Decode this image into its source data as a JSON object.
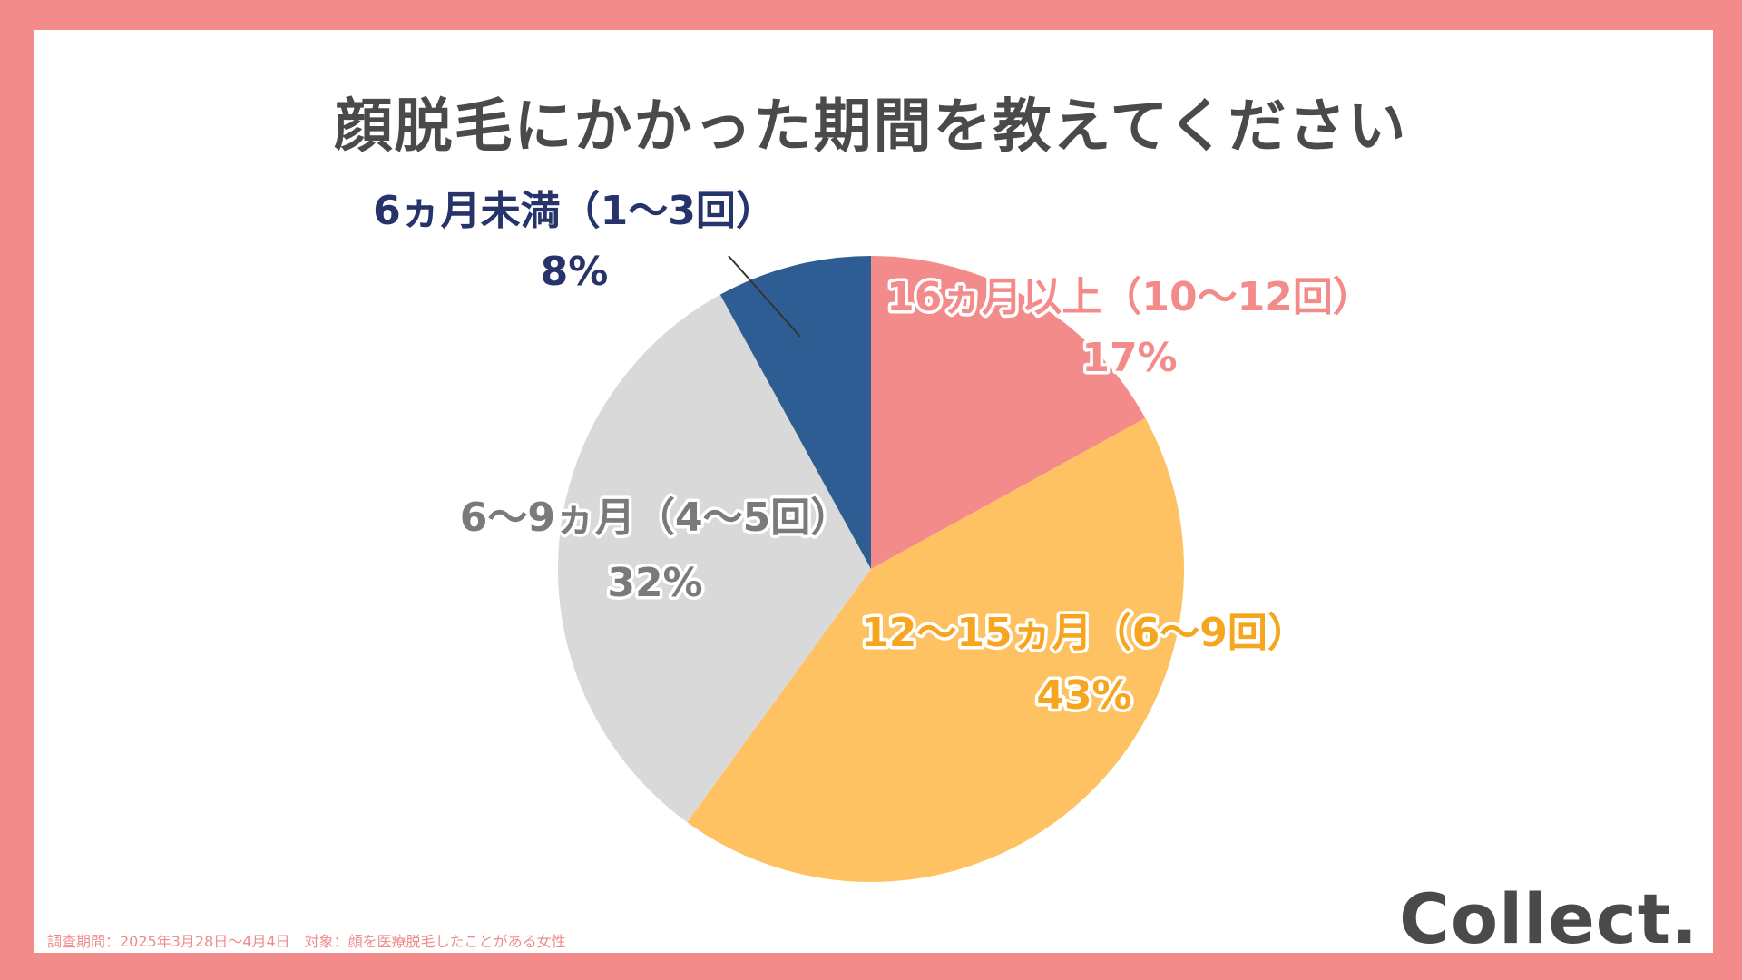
{
  "chart_data": {
    "type": "pie",
    "title": "顔脱毛にかかった期間を教えてください",
    "start_angle_deg": 0,
    "direction": "clockwise",
    "slices": [
      {
        "label": "16ヵ月以上（10〜12回）",
        "value": 17,
        "value_label": "17%",
        "color": "#f48b8b",
        "label_color": "#f48b8b"
      },
      {
        "label": "12〜15ヵ月（6〜9回）",
        "value": 43,
        "value_label": "43%",
        "color": "#fec263",
        "label_color": "#f5a51e"
      },
      {
        "label": "6〜9ヵ月（4〜5回）",
        "value": 32,
        "value_label": "32%",
        "color": "#d9d9d9",
        "label_color": "#7a7a7a"
      },
      {
        "label": "6ヵ月未満（1〜3回）",
        "value": 8,
        "value_label": "8%",
        "color": "#2e5d94",
        "label_color": "#27346b"
      }
    ]
  },
  "footnote": "調査期間：2025年3月28日〜4月4日　対象：顔を医療脱毛したことがある女性",
  "brand": "Collect."
}
